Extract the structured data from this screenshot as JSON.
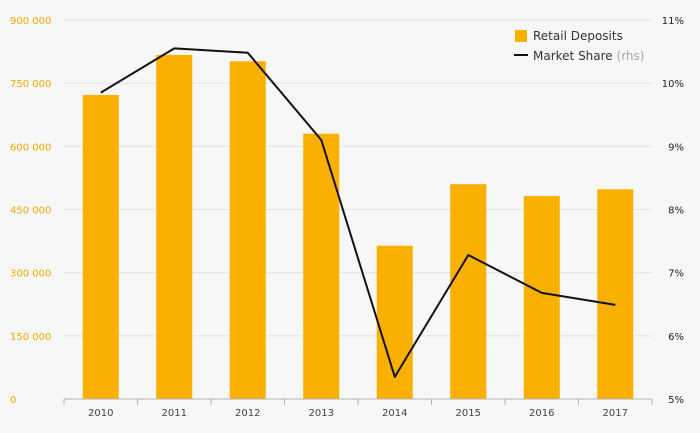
{
  "chart_data": {
    "type": "bar+line",
    "categories": [
      "2010",
      "2011",
      "2012",
      "2013",
      "2014",
      "2015",
      "2016",
      "2017"
    ],
    "series": [
      {
        "name": "Retail Deposits",
        "type": "bar",
        "axis": "left",
        "color": "#f9b000",
        "values": [
          722000,
          817000,
          802000,
          630000,
          364000,
          510000,
          482000,
          498000
        ]
      },
      {
        "name": "Market Share",
        "suffix": "(rhs)",
        "type": "line",
        "axis": "right",
        "color": "#111111",
        "values": [
          9.85,
          10.55,
          10.48,
          9.1,
          5.35,
          7.28,
          6.68,
          6.49
        ]
      }
    ],
    "y_left": {
      "ylim": [
        0,
        900000
      ],
      "ticks": [
        0,
        150000,
        300000,
        450000,
        600000,
        750000,
        900000
      ],
      "tick_labels": [
        "0",
        "150 000",
        "300 000",
        "450 000",
        "600 000",
        "750 000",
        "900 000"
      ],
      "color": "#f5a800"
    },
    "y_right": {
      "ylim": [
        5,
        11
      ],
      "ticks": [
        5,
        6,
        7,
        8,
        9,
        10,
        11
      ],
      "tick_labels": [
        "5%",
        "6%",
        "7%",
        "8%",
        "9%",
        "10%",
        "11%"
      ]
    },
    "grid": true,
    "legend_position": "top-right"
  }
}
